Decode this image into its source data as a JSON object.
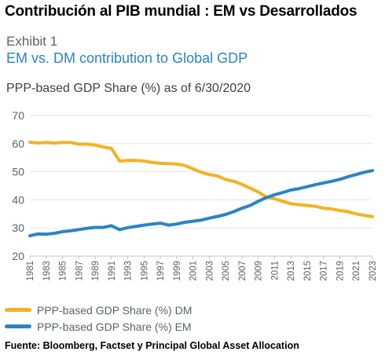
{
  "header": {
    "headline": "Contribución al PIB mundial : EM vs Desarrollados",
    "exhibit": "Exhibit 1",
    "subtitle": "EM vs. DM contribution to Global GDP"
  },
  "source": "Fuente: Bloomberg, Factset y Principal Global Asset Allocation",
  "chart_data": {
    "type": "line",
    "title": "PPP-based GDP Share (%) as of 6/30/2020",
    "xlabel": "",
    "ylabel": "",
    "ylim": [
      20,
      70
    ],
    "yticks": [
      20,
      30,
      40,
      50,
      60,
      70
    ],
    "xlim": [
      1981,
      2023
    ],
    "xticks": [
      "1981",
      "1983",
      "1985",
      "1987",
      "1989",
      "1991",
      "1993",
      "1995",
      "1997",
      "1999",
      "2001",
      "2003",
      "2005",
      "2007",
      "2009",
      "2011",
      "2013",
      "2015",
      "2017",
      "2019",
      "2021",
      "2023"
    ],
    "grid": "horizontal",
    "legend_position": "bottom-left",
    "x": [
      1981,
      1982,
      1983,
      1984,
      1985,
      1986,
      1987,
      1988,
      1989,
      1990,
      1991,
      1992,
      1993,
      1994,
      1995,
      1996,
      1997,
      1998,
      1999,
      2000,
      2001,
      2002,
      2003,
      2004,
      2005,
      2006,
      2007,
      2008,
      2009,
      2010,
      2011,
      2012,
      2013,
      2014,
      2015,
      2016,
      2017,
      2018,
      2019,
      2020,
      2021,
      2022,
      2023
    ],
    "series": [
      {
        "name": "PPP-based GDP Share (%) DM",
        "color": "#f4b223",
        "values": [
          60.5,
          60.2,
          60.4,
          60.2,
          60.4,
          60.4,
          59.8,
          59.8,
          59.5,
          58.8,
          58.3,
          53.8,
          54.0,
          54.0,
          53.8,
          53.3,
          53.0,
          52.9,
          52.7,
          52.2,
          51.0,
          49.8,
          49.0,
          48.5,
          47.2,
          46.6,
          45.5,
          44.2,
          42.8,
          41.0,
          40.4,
          39.5,
          38.6,
          38.3,
          38.0,
          37.7,
          37.0,
          36.8,
          36.2,
          35.8,
          35.0,
          34.5,
          34.0
        ]
      },
      {
        "name": "PPP-based GDP Share (%) EM",
        "color": "#2b83c6",
        "values": [
          27.2,
          27.9,
          27.8,
          28.1,
          28.7,
          29.0,
          29.4,
          29.9,
          30.2,
          30.2,
          30.8,
          29.4,
          30.1,
          30.6,
          31.0,
          31.4,
          31.7,
          31.0,
          31.4,
          32.0,
          32.4,
          32.8,
          33.5,
          34.1,
          34.8,
          35.8,
          37.0,
          38.0,
          39.5,
          40.8,
          41.8,
          42.6,
          43.5,
          44.0,
          44.7,
          45.4,
          46.0,
          46.6,
          47.3,
          48.2,
          49.0,
          49.8,
          50.4
        ]
      }
    ]
  }
}
